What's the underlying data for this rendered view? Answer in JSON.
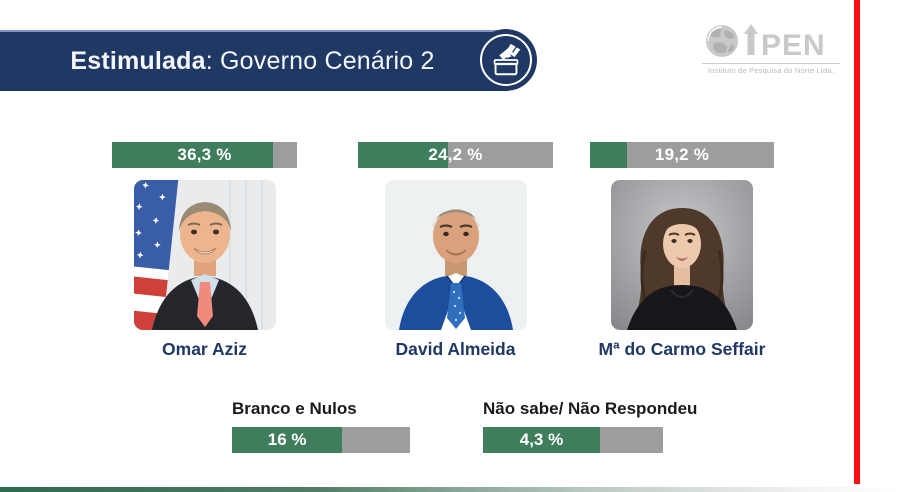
{
  "header": {
    "title_bold": "Estimulada",
    "title_rest": ": Governo Cenário 2"
  },
  "logo": {
    "name": "iPEN",
    "name_rest": "PEN",
    "subtitle": "Instituto de Pesquisa do Norte Ltda."
  },
  "icons": {
    "ballot": "ballot-box-icon",
    "globe": "globe-icon",
    "logo_arrow": "arrow-up-icon"
  },
  "colors": {
    "navy": "#1F3864",
    "green": "#3F7E5D",
    "bar_gray": "#9D9D9D",
    "red_accent": "#FB1111",
    "name_navy": "#1F3864",
    "logo_gray": "#C9C9C9"
  },
  "candidates": [
    {
      "name": "Omar Aziz",
      "value_label": "36,3 %",
      "value": 36.3,
      "fill_pct": 87
    },
    {
      "name": "David Almeida",
      "value_label": "24,2 %",
      "value": 24.2,
      "fill_pct": 46
    },
    {
      "name": "Mª do Carmo Seffair",
      "value_label": "19,2 %",
      "value": 19.2,
      "fill_pct": 20
    }
  ],
  "others": [
    {
      "label": "Branco e Nulos",
      "value_label": "16 %",
      "value": 16.0,
      "fill_pct": 62
    },
    {
      "label": "Não sabe/ Não Respondeu",
      "value_label": "4,3 %",
      "value": 4.3,
      "fill_pct": 65
    }
  ],
  "chart_data": {
    "type": "bar",
    "title": "Estimulada: Governo Cenário 2",
    "categories": [
      "Omar Aziz",
      "David Almeida",
      "Mª do Carmo Seffair",
      "Branco e Nulos",
      "Não sabe/ Não Respondeu"
    ],
    "values": [
      36.3,
      24.2,
      19.2,
      16.0,
      4.3
    ],
    "value_labels": [
      "36,3 %",
      "24,2 %",
      "19,2 %",
      "16 %",
      "4,3 %"
    ],
    "unit": "%",
    "legend": false,
    "orientation": "horizontal-fill-bars",
    "bar_colors": {
      "fill": "#3F7E5D",
      "track": "#9D9D9D"
    }
  }
}
